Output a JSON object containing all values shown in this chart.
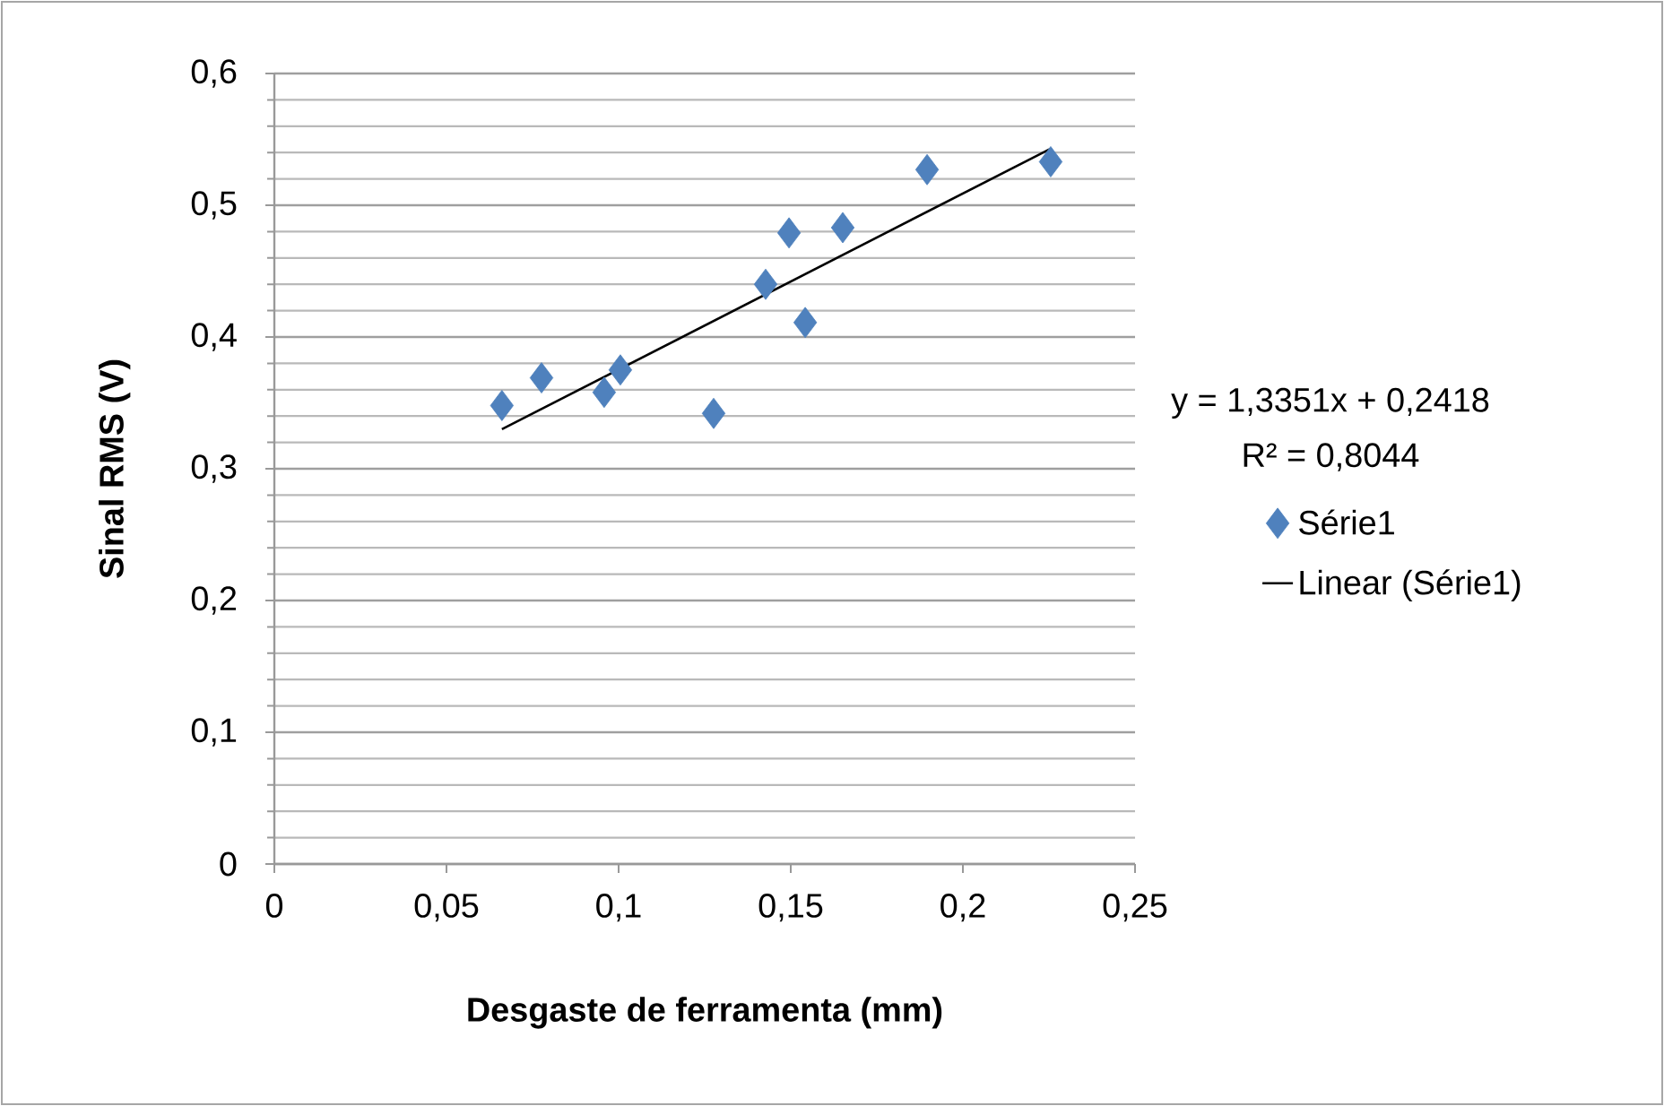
{
  "chart_data": {
    "type": "scatter",
    "xlabel": "Desgaste de ferramenta (mm)",
    "ylabel": "Sinal RMS (V)",
    "xlim": [
      0,
      0.25
    ],
    "ylim": [
      0,
      0.6
    ],
    "xticks": [
      0,
      {
        "value": 0.05,
        "label": "0,05"
      },
      {
        "value": 0.1,
        "label": "0,1"
      },
      {
        "value": 0.15,
        "label": "0,15"
      },
      {
        "value": 0.2,
        "label": "0,2"
      },
      {
        "value": 0.25,
        "label": "0,25"
      }
    ],
    "yticks": [
      0,
      {
        "value": 0.02,
        "label": null
      },
      {
        "value": 0.04,
        "label": null
      },
      {
        "value": 0.06,
        "label": null
      },
      {
        "value": 0.08,
        "label": null
      },
      {
        "value": 0.1,
        "label": "0,1"
      },
      {
        "value": 0.12,
        "label": null
      },
      {
        "value": 0.14,
        "label": null
      },
      {
        "value": 0.16,
        "label": null
      },
      {
        "value": 0.18,
        "label": null
      },
      {
        "value": 0.2,
        "label": "0,2"
      },
      {
        "value": 0.22,
        "label": null
      },
      {
        "value": 0.24,
        "label": null
      },
      {
        "value": 0.26,
        "label": null
      },
      {
        "value": 0.28,
        "label": null
      },
      {
        "value": 0.3,
        "label": "0,3"
      },
      {
        "value": 0.32,
        "label": null
      },
      {
        "value": 0.34,
        "label": null
      },
      {
        "value": 0.36,
        "label": null
      },
      {
        "value": 0.38,
        "label": null
      },
      {
        "value": 0.4,
        "label": "0,4"
      },
      {
        "value": 0.42,
        "label": null
      },
      {
        "value": 0.44,
        "label": null
      },
      {
        "value": 0.46,
        "label": null
      },
      {
        "value": 0.48,
        "label": null
      },
      {
        "value": 0.5,
        "label": "0,5"
      },
      {
        "value": 0.52,
        "label": null
      },
      {
        "value": 0.54,
        "label": null
      },
      {
        "value": 0.56,
        "label": null
      },
      {
        "value": 0.58,
        "label": null
      },
      {
        "value": 0.6,
        "label": "0,6"
      }
    ],
    "grid": "y",
    "legend": "right",
    "marker": "diamond",
    "annotations": [
      "y = 1,3351x + 0,2418",
      "R² = 0,8044"
    ],
    "series": [
      {
        "name": "Série1",
        "color": "#4f81bd",
        "x": [
          0.0661,
          0.0776,
          0.0958,
          0.1005,
          0.1276,
          0.1427,
          0.1495,
          0.1542,
          0.1651,
          0.1896,
          0.2255
        ],
        "values": [
          0.348,
          0.369,
          0.358,
          0.375,
          0.342,
          0.44,
          0.479,
          0.411,
          0.483,
          0.527,
          0.533
        ]
      },
      {
        "name": "Linear (Série1)",
        "type": "line",
        "color": "#000000",
        "marker": "none",
        "x": [
          0.0661,
          0.2255
        ],
        "values": [
          0.33,
          0.543
        ]
      }
    ]
  }
}
